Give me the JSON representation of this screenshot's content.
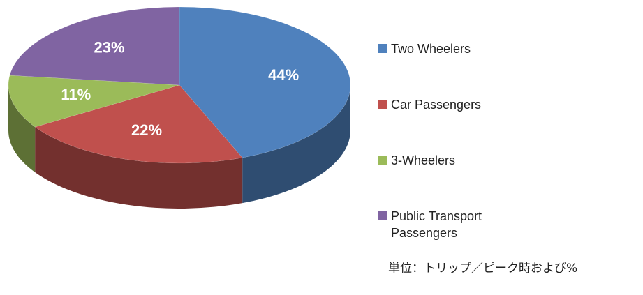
{
  "chart_data": {
    "type": "pie",
    "categories": [
      "Two Wheelers",
      "Car Passengers",
      "3-Wheelers",
      "Public Transport Passengers"
    ],
    "values": [
      44,
      22,
      11,
      23
    ],
    "value_labels": [
      "44%",
      "22%",
      "11%",
      "23%"
    ],
    "colors": [
      "#4f81bd",
      "#c0504d",
      "#9bbb59",
      "#8064a2"
    ],
    "legend": "right",
    "annotation": "単位：トリップ／ピーク時および%"
  }
}
